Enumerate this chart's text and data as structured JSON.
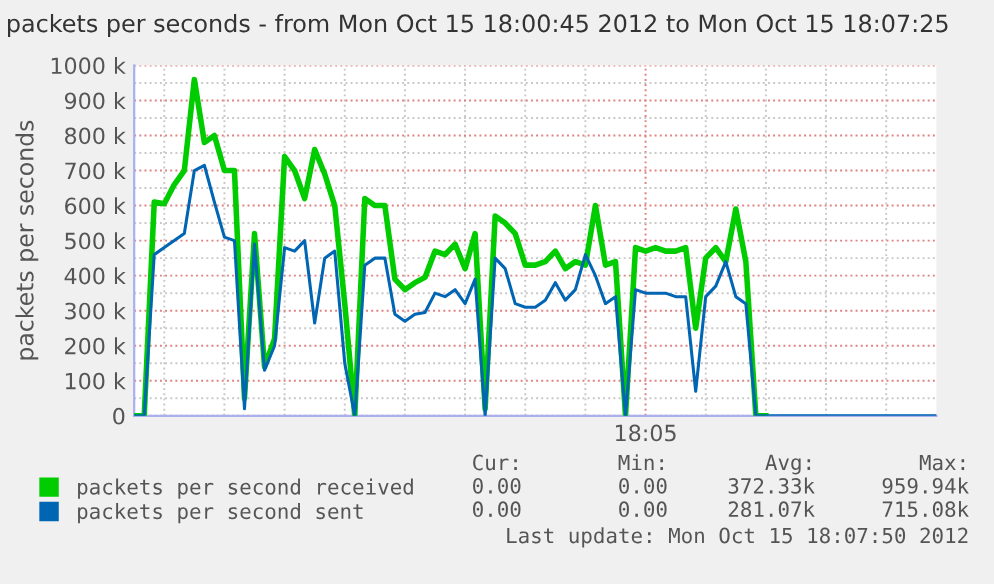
{
  "chart_data": {
    "type": "line",
    "title": "packets per seconds - from Mon Oct 15 18:00:45 2012 to Mon Oct 15 18:07:25",
    "ylabel": "packets per seconds",
    "categories": [
      null,
      null,
      null,
      null,
      null,
      null,
      null,
      null,
      null,
      null,
      null,
      null,
      null,
      null,
      null,
      null,
      null,
      null,
      null,
      null,
      null,
      null,
      null,
      null,
      null,
      null,
      null,
      null,
      null,
      null,
      null,
      null,
      null,
      null,
      null,
      null,
      null,
      null,
      null,
      null,
      null,
      null,
      null,
      null,
      null,
      null,
      null,
      null,
      null,
      null,
      null,
      "18:05",
      null,
      null,
      null,
      null,
      null,
      null,
      null,
      null,
      null,
      null,
      null,
      null,
      null,
      null,
      null,
      null,
      null,
      null,
      null,
      null,
      null,
      null,
      null,
      null,
      null,
      null,
      null,
      null,
      null
    ],
    "ylim": [
      0,
      1000
    ],
    "yticks": [
      {
        "value": 0,
        "label": "0"
      },
      {
        "value": 50,
        "label": null
      },
      {
        "value": 100,
        "label": "100 k"
      },
      {
        "value": 150,
        "label": null
      },
      {
        "value": 200,
        "label": "200 k"
      },
      {
        "value": 250,
        "label": null
      },
      {
        "value": 300,
        "label": "300 k"
      },
      {
        "value": 350,
        "label": null
      },
      {
        "value": 400,
        "label": "400 k"
      },
      {
        "value": 450,
        "label": null
      },
      {
        "value": 500,
        "label": "500 k"
      },
      {
        "value": 550,
        "label": null
      },
      {
        "value": 600,
        "label": "600 k"
      },
      {
        "value": 650,
        "label": null
      },
      {
        "value": 700,
        "label": "700 k"
      },
      {
        "value": 750,
        "label": null
      },
      {
        "value": 800,
        "label": "800 k"
      },
      {
        "value": 850,
        "label": null
      },
      {
        "value": 900,
        "label": "900 k"
      },
      {
        "value": 950,
        "label": null
      },
      {
        "value": 1000,
        "label": "1000 k"
      }
    ],
    "grid": true,
    "legend": "bottom left",
    "marker": "none",
    "line_style": "solid",
    "annotations": [
      "Cur:",
      "Min:",
      "Avg:",
      "Max:",
      "0.00",
      "0.00",
      "372.33k",
      "959.94k",
      "0.00",
      "0.00",
      "281.07k",
      "715.08k",
      "Last update: Mon Oct 15 18:07:50 2012"
    ],
    "series": [
      {
        "name": "packets per second received",
        "color": "#00cc00",
        "values": [
          0,
          0,
          610,
          605,
          660,
          700,
          960,
          780,
          800,
          700,
          700,
          50,
          520,
          140,
          220,
          740,
          700,
          620,
          760,
          690,
          600,
          320,
          0,
          620,
          600,
          600,
          390,
          360,
          380,
          395,
          470,
          460,
          490,
          420,
          520,
          20,
          570,
          550,
          520,
          430,
          430,
          440,
          470,
          420,
          440,
          430,
          600,
          430,
          440,
          0,
          480,
          470,
          480,
          470,
          470,
          480,
          250,
          450,
          480,
          440,
          590,
          440,
          0,
          0,
          null,
          null,
          null,
          null,
          null,
          null,
          null,
          null,
          null,
          null,
          null,
          null,
          null,
          null,
          null,
          null,
          null
        ]
      },
      {
        "name": "packets per second sent",
        "color": "#0066b3",
        "values": [
          0,
          0,
          460,
          480,
          500,
          520,
          700,
          715,
          610,
          510,
          500,
          20,
          490,
          130,
          200,
          480,
          470,
          500,
          265,
          450,
          470,
          150,
          0,
          430,
          450,
          450,
          290,
          270,
          290,
          295,
          350,
          340,
          360,
          320,
          390,
          0,
          450,
          420,
          320,
          310,
          310,
          330,
          380,
          330,
          360,
          460,
          400,
          320,
          340,
          0,
          360,
          350,
          350,
          350,
          340,
          340,
          70,
          340,
          370,
          440,
          340,
          320,
          0,
          0,
          0,
          0,
          0,
          0,
          0,
          0,
          0,
          0,
          0,
          0,
          0,
          0,
          0,
          0,
          0,
          0,
          0
        ]
      }
    ]
  }
}
